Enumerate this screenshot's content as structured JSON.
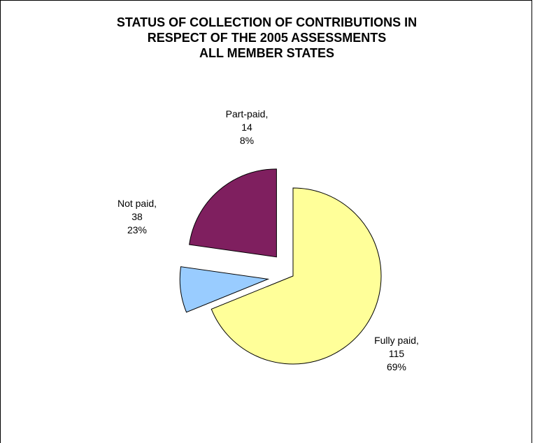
{
  "chart_data": {
    "type": "pie",
    "title_lines": [
      "STATUS OF COLLECTION OF CONTRIBUTIONS IN",
      "RESPECT OF THE 2005 ASSESSMENTS",
      "ALL MEMBER STATES"
    ],
    "slices": [
      {
        "name": "Fully paid,",
        "value": 115,
        "percent": "69%",
        "color": "#ffff99"
      },
      {
        "name": "Part-paid,",
        "value": 14,
        "percent": "8%",
        "color": "#99ccff"
      },
      {
        "name": "Not paid,",
        "value": 38,
        "percent": "23%",
        "color": "#7f1f5f"
      }
    ],
    "exploded": true,
    "legend": "none"
  }
}
